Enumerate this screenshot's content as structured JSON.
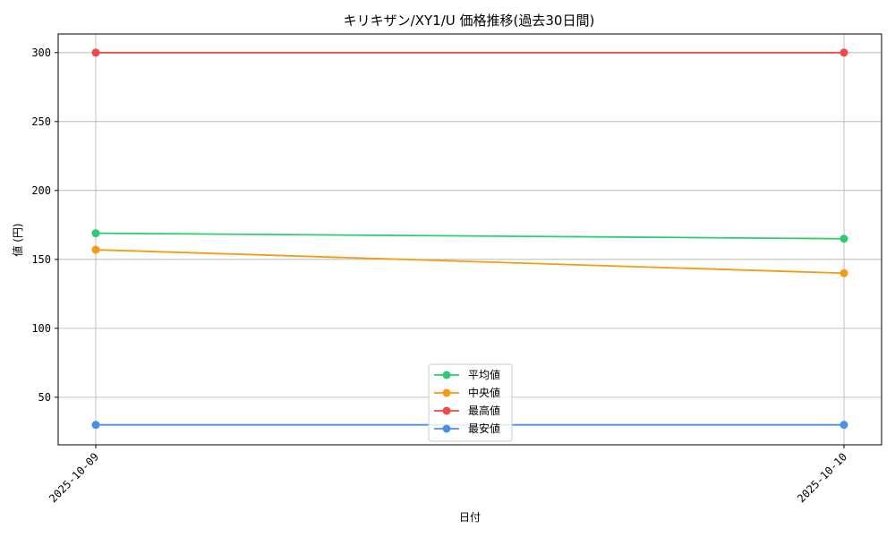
{
  "chart_data": {
    "type": "line",
    "title": "キリキザン/XY1/U 価格推移(過去30日間)",
    "xlabel": "日付",
    "ylabel": "値 (円)",
    "categories": [
      "2025-10-09",
      "2025-10-10"
    ],
    "series": [
      {
        "name": "平均値",
        "color": "#2ecc71",
        "values": [
          169,
          165
        ]
      },
      {
        "name": "中央値",
        "color": "#f39c12",
        "values": [
          157,
          140
        ]
      },
      {
        "name": "最高値",
        "color": "#f04848",
        "values": [
          300,
          300
        ]
      },
      {
        "name": "最安値",
        "color": "#4a90e2",
        "values": [
          30,
          30
        ]
      }
    ],
    "ylim": [
      15.5,
      313.5
    ],
    "yticks": [
      50,
      100,
      150,
      200,
      250,
      300
    ],
    "grid": true,
    "legend_position": "bottom-center"
  }
}
